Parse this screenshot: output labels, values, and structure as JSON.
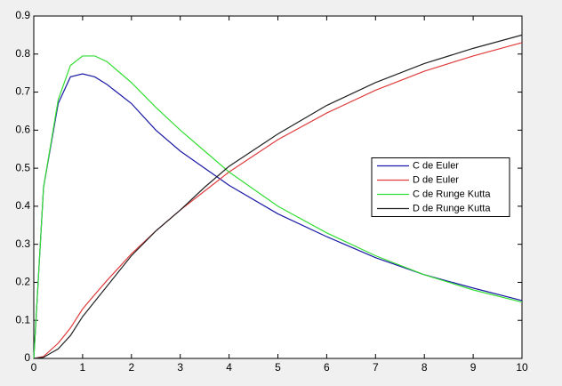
{
  "chart_data": {
    "type": "line",
    "x": [
      0,
      0.2,
      0.5,
      0.75,
      1,
      1.25,
      1.5,
      2,
      2.5,
      3,
      3.5,
      4,
      5,
      6,
      7,
      8,
      9,
      10
    ],
    "series": [
      {
        "name": "C de Euler",
        "color": "#1a1aa6",
        "values": [
          0,
          0.45,
          0.67,
          0.74,
          0.748,
          0.74,
          0.72,
          0.67,
          0.6,
          0.545,
          0.5,
          0.455,
          0.38,
          0.32,
          0.265,
          0.22,
          0.185,
          0.152
        ]
      },
      {
        "name": "D de Euler",
        "color": "#e03c3c",
        "values": [
          0,
          0.005,
          0.04,
          0.08,
          0.13,
          0.168,
          0.205,
          0.275,
          0.335,
          0.39,
          0.44,
          0.49,
          0.575,
          0.645,
          0.705,
          0.755,
          0.795,
          0.83
        ]
      },
      {
        "name": "C de Runge Kutta",
        "color": "#33dd33",
        "values": [
          0,
          0.45,
          0.68,
          0.77,
          0.795,
          0.795,
          0.78,
          0.725,
          0.66,
          0.6,
          0.545,
          0.49,
          0.4,
          0.33,
          0.27,
          0.22,
          0.18,
          0.148
        ]
      },
      {
        "name": "D de Runge Kutta",
        "color": "#222222",
        "values": [
          0,
          0.003,
          0.025,
          0.06,
          0.11,
          0.15,
          0.19,
          0.27,
          0.335,
          0.39,
          0.45,
          0.505,
          0.59,
          0.665,
          0.725,
          0.775,
          0.815,
          0.85
        ]
      }
    ],
    "xlim": [
      0,
      10
    ],
    "xticks": [
      0,
      1,
      2,
      3,
      4,
      5,
      6,
      7,
      8,
      9,
      10
    ],
    "ylim": [
      0,
      0.9
    ],
    "yticks": [
      0,
      0.1,
      0.2,
      0.3,
      0.4,
      0.5,
      0.6,
      0.7,
      0.8,
      0.9
    ],
    "legend": "east"
  }
}
